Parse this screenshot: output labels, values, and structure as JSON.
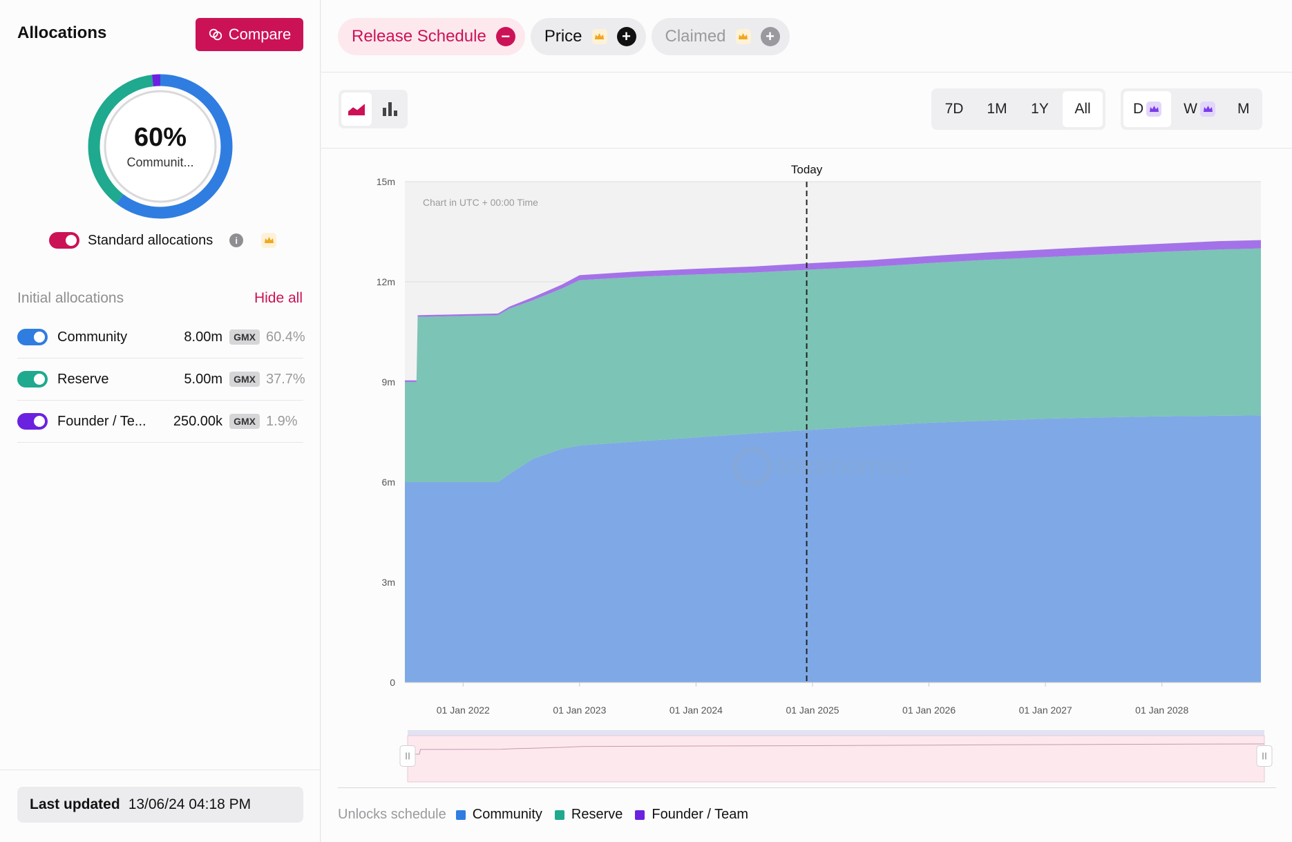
{
  "left": {
    "title": "Allocations",
    "compare_label": "Compare",
    "donut": {
      "percent": "60%",
      "label": "Communit..."
    },
    "standard_label": "Standard allocations",
    "initial_label": "Initial allocations",
    "hide_all_label": "Hide all",
    "allocations": [
      {
        "name": "Community",
        "amount": "8.00m",
        "token": "GMX",
        "percent": "60.4%",
        "color": "#2f7de1"
      },
      {
        "name": "Reserve",
        "amount": "5.00m",
        "token": "GMX",
        "percent": "37.7%",
        "color": "#1fa98e"
      },
      {
        "name": "Founder / Te...",
        "amount": "250.00k",
        "token": "GMX",
        "percent": "1.9%",
        "color": "#6a22e0"
      }
    ],
    "last_updated_label": "Last updated",
    "last_updated_value": "13/06/24 04:18 PM"
  },
  "chips": [
    {
      "label": "Release Schedule",
      "symbol": "−"
    },
    {
      "label": "Price",
      "symbol": "+"
    },
    {
      "label": "Claimed",
      "symbol": "+"
    }
  ],
  "ranges": [
    "7D",
    "1M",
    "1Y",
    "All"
  ],
  "granularity": [
    "D",
    "W",
    "M"
  ],
  "legend": {
    "title": "Unlocks schedule",
    "items": [
      {
        "name": "Community",
        "color": "#2f7de1"
      },
      {
        "name": "Reserve",
        "color": "#1fa98e"
      },
      {
        "name": "Founder / Team",
        "color": "#6a22e0"
      }
    ]
  },
  "chart_data": {
    "type": "area",
    "stacked": true,
    "title": "",
    "note": "Chart in UTC + 00:00 Time",
    "watermark": "tokenomist",
    "today_label": "Today",
    "today_x": 2024.95,
    "xlim": [
      2021.5,
      2028.85
    ],
    "ylim": [
      0,
      15
    ],
    "yticks": [
      {
        "v": 0,
        "label": "0"
      },
      {
        "v": 3,
        "label": "3m"
      },
      {
        "v": 6,
        "label": "6m"
      },
      {
        "v": 9,
        "label": "9m"
      },
      {
        "v": 12,
        "label": "12m"
      },
      {
        "v": 15,
        "label": "15m"
      }
    ],
    "xticks": [
      {
        "v": 2022.0,
        "label": "01 Jan 2022"
      },
      {
        "v": 2023.0,
        "label": "01 Jan 2023"
      },
      {
        "v": 2024.0,
        "label": "01 Jan 2024"
      },
      {
        "v": 2025.0,
        "label": "01 Jan 2025"
      },
      {
        "v": 2026.0,
        "label": "01 Jan 2026"
      },
      {
        "v": 2027.0,
        "label": "01 Jan 2027"
      },
      {
        "v": 2028.0,
        "label": "01 Jan 2028"
      }
    ],
    "x": [
      2021.5,
      2021.6,
      2021.61,
      2022.3,
      2022.4,
      2022.6,
      2022.85,
      2023.0,
      2023.5,
      2024.0,
      2024.5,
      2025.0,
      2025.5,
      2026.0,
      2026.5,
      2027.0,
      2027.5,
      2028.0,
      2028.5,
      2028.85
    ],
    "series": [
      {
        "name": "Community",
        "color": "#7ea9e6",
        "values": [
          6.0,
          6.0,
          6.0,
          6.0,
          6.25,
          6.7,
          7.0,
          7.1,
          7.22,
          7.34,
          7.46,
          7.57,
          7.68,
          7.78,
          7.84,
          7.9,
          7.94,
          7.97,
          7.99,
          8.0
        ]
      },
      {
        "name": "Reserve",
        "color": "#7cc4b6",
        "values": [
          3.0,
          3.0,
          4.95,
          5.0,
          4.95,
          4.75,
          4.8,
          4.95,
          4.93,
          4.88,
          4.82,
          4.8,
          4.77,
          4.78,
          4.82,
          4.84,
          4.88,
          4.93,
          4.98,
          5.0
        ]
      },
      {
        "name": "Founder / Team",
        "color": "#a472e8",
        "values": [
          0.05,
          0.05,
          0.05,
          0.05,
          0.06,
          0.09,
          0.12,
          0.15,
          0.16,
          0.17,
          0.18,
          0.19,
          0.2,
          0.21,
          0.22,
          0.23,
          0.24,
          0.24,
          0.25,
          0.25
        ]
      }
    ]
  }
}
